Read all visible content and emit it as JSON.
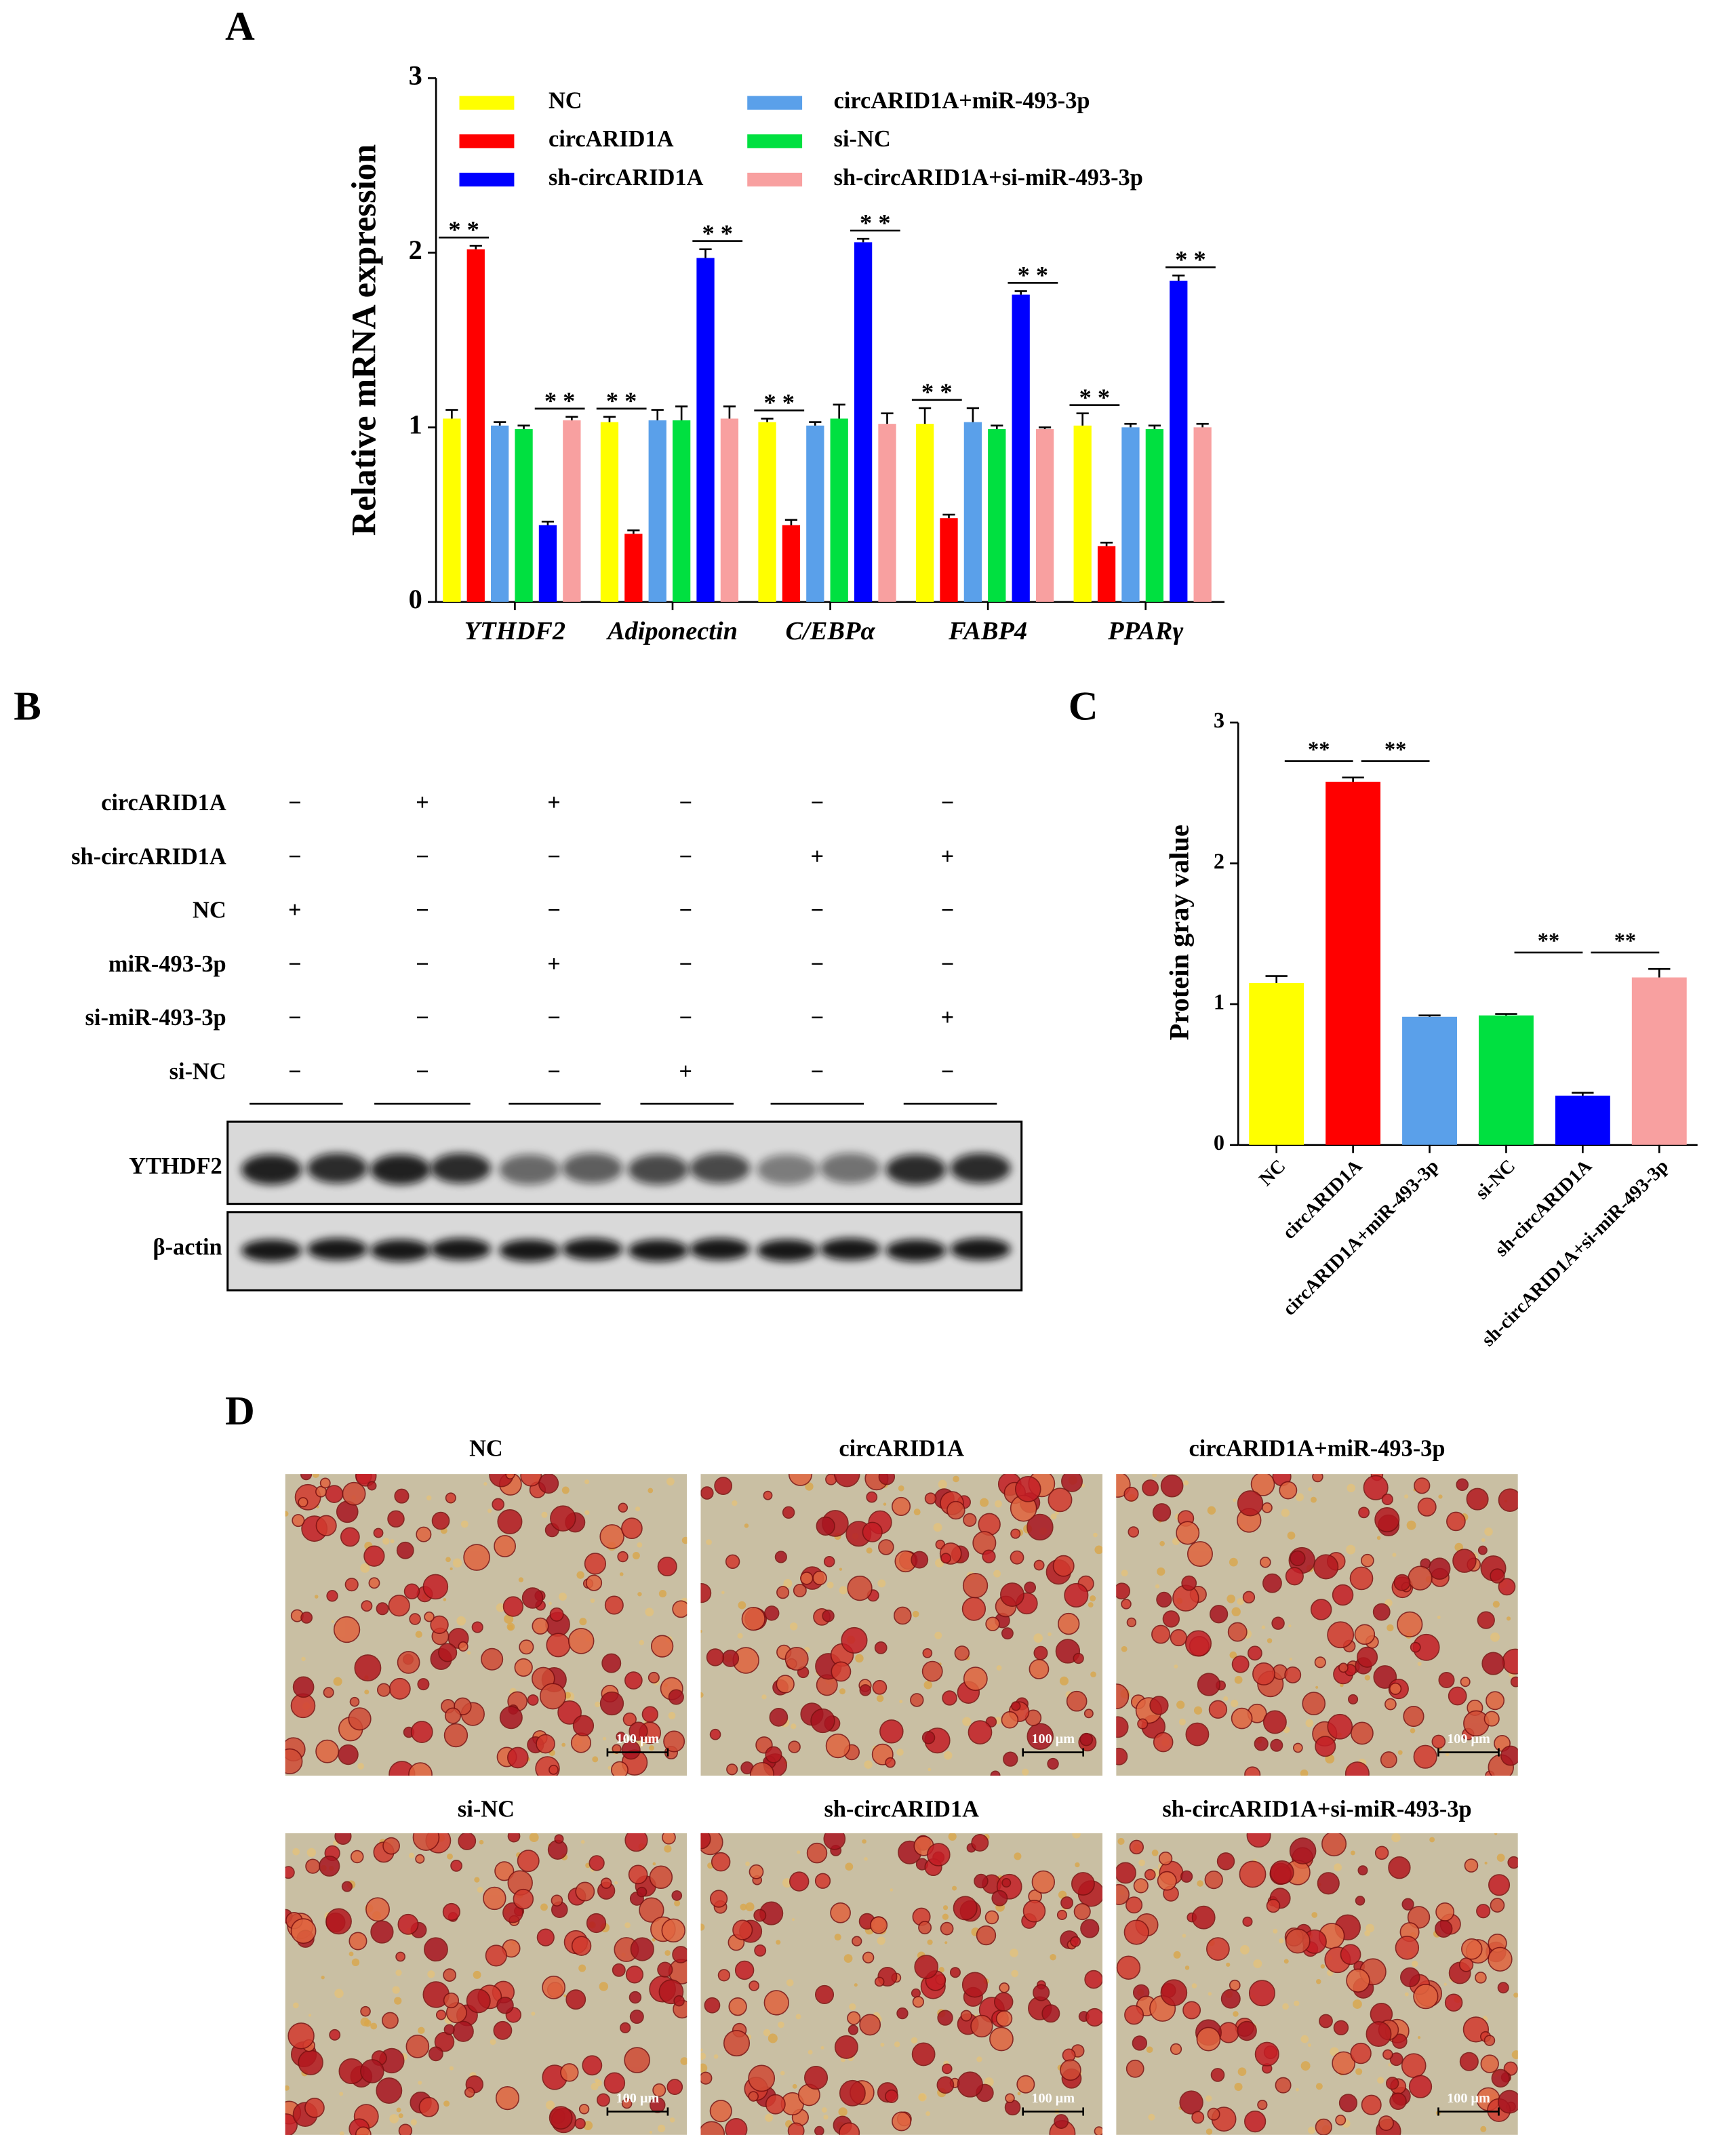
{
  "panel_labels": [
    "A",
    "B",
    "C",
    "D"
  ],
  "chart_data": [
    {
      "type": "bar",
      "y_label": "Relative mRNA expression",
      "categories": [
        "YTHDF2",
        "Adiponectin",
        "C/EBPα",
        "FABP4",
        "PPARγ"
      ],
      "series": [
        {
          "name": "NC",
          "color": "#ffff00",
          "values": [
            1.05,
            1.03,
            1.03,
            1.02,
            1.01
          ],
          "errors": [
            0.05,
            0.03,
            0.02,
            0.09,
            0.07
          ]
        },
        {
          "name": "circARID1A",
          "color": "#ff0000",
          "values": [
            2.02,
            0.39,
            0.44,
            0.48,
            0.32
          ],
          "errors": [
            0.02,
            0.02,
            0.03,
            0.02,
            0.02
          ]
        },
        {
          "name": "sh-circARID1A",
          "color": "#0000ff",
          "values": [
            0.44,
            1.97,
            2.06,
            1.76,
            1.84
          ],
          "errors": [
            0.02,
            0.05,
            0.02,
            0.02,
            0.03
          ]
        },
        {
          "name": "circARID1A+miR-493-3p",
          "color": "#5aa0ea",
          "values": [
            1.01,
            1.04,
            1.01,
            1.03,
            1.0
          ],
          "errors": [
            0.02,
            0.06,
            0.02,
            0.08,
            0.02
          ]
        },
        {
          "name": "si-NC",
          "color": "#00e040",
          "values": [
            0.99,
            1.04,
            1.05,
            0.99,
            0.99
          ],
          "errors": [
            0.02,
            0.08,
            0.08,
            0.02,
            0.02
          ]
        },
        {
          "name": "sh-circARID1A+si-miR-493-3p",
          "color": "#f8a0a0",
          "values": [
            1.04,
            1.05,
            1.02,
            0.99,
            1.0
          ],
          "errors": [
            0.02,
            0.07,
            0.06,
            0.01,
            0.02
          ]
        }
      ],
      "ylim": [
        0,
        3
      ],
      "yticks": [
        0,
        1,
        2,
        3
      ],
      "significance": [
        [
          "* *",
          "* *"
        ],
        [
          "* *",
          "* *"
        ],
        [
          "* *",
          "* *"
        ],
        [
          "* *",
          "* *"
        ],
        [
          "* *",
          "* *"
        ]
      ]
    },
    {
      "type": "bar",
      "y_label": "Protein gray value",
      "categories": [
        "NC",
        "circARID1A",
        "circARID1A+miR-493-3p",
        "si-NC",
        "sh-circARID1A",
        "sh-circARID1A+si-miR-493-3p"
      ],
      "values": [
        1.15,
        2.58,
        0.91,
        0.92,
        0.35,
        1.19
      ],
      "errors": [
        0.05,
        0.03,
        0.01,
        0.01,
        0.02,
        0.06
      ],
      "colors": [
        "#ffff00",
        "#ff0000",
        "#5aa0ea",
        "#00e040",
        "#0000ff",
        "#f8a0a0"
      ],
      "ylim": [
        0,
        3
      ],
      "yticks": [
        0,
        1,
        2,
        3
      ],
      "significance": [
        "**",
        "**",
        "**",
        "**"
      ]
    }
  ],
  "blot": {
    "rows": [
      {
        "label": "circARID1A",
        "marks": [
          "−",
          "+",
          "+",
          "−",
          "−",
          "−"
        ]
      },
      {
        "label": "sh-circARID1A",
        "marks": [
          "−",
          "−",
          "−",
          "−",
          "+",
          "+"
        ]
      },
      {
        "label": "NC",
        "marks": [
          "+",
          "−",
          "−",
          "−",
          "−",
          "−"
        ]
      },
      {
        "label": "miR-493-3p",
        "marks": [
          "−",
          "−",
          "+",
          "−",
          "−",
          "−"
        ]
      },
      {
        "label": "si-miR-493-3p",
        "marks": [
          "−",
          "−",
          "−",
          "−",
          "−",
          "+"
        ]
      },
      {
        "label": "si-NC",
        "marks": [
          "−",
          "−",
          "−",
          "+",
          "−",
          "−"
        ]
      }
    ],
    "bands": [
      "YTHDF2",
      "β-actin"
    ]
  },
  "micrographs": {
    "titles": [
      "NC",
      "circARID1A",
      "circARID1A+miR-493-3p",
      "si-NC",
      "sh-circARID1A",
      "sh-circARID1A+si-miR-493-3p"
    ],
    "scale_label": "100 μm"
  }
}
